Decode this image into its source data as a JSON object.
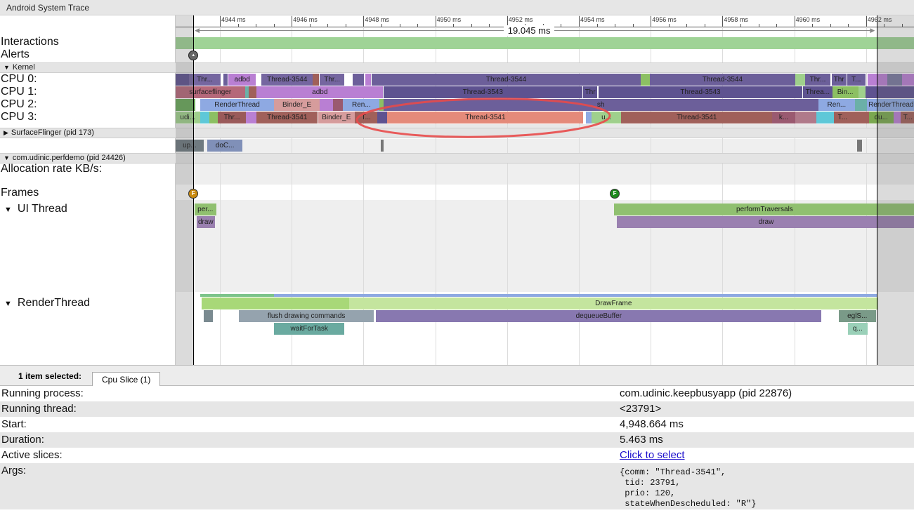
{
  "window": {
    "title": "Android System Trace"
  },
  "colors": {
    "accent_annotation": "#e84a4a",
    "interactions": "#9fd396",
    "selected_slice": "#e48a7a"
  },
  "ruler": {
    "ticks_ms": [
      4944,
      4946,
      4948,
      4950,
      4952,
      4954,
      4956,
      4958,
      4960,
      4962
    ],
    "labels": [
      "4944 ms",
      "4946 ms",
      "4948 ms",
      "4950 ms",
      "4952 ms",
      "4954 ms",
      "4956 ms",
      "4958 ms",
      "4960 ms",
      "4962 ms"
    ],
    "selection_start_ms": 4943.26,
    "selection_end_ms": 4962.305,
    "selection_duration": "19.045 ms"
  },
  "labels": {
    "interactions": "Interactions",
    "alerts": "Alerts",
    "kernel": "Kernel",
    "cpu0": "CPU 0:",
    "cpu1": "CPU 1:",
    "cpu2": "CPU 2:",
    "cpu3": "CPU 3:",
    "surfaceflinger": "SurfaceFlinger (pid 173)",
    "process": "com.udinic.perfdemo (pid 24426)",
    "allocation": "Allocation rate KB/s:",
    "frames": "Frames",
    "ui_thread": "UI Thread",
    "render_thread": "RenderThread"
  },
  "markers": {
    "alert_ms": 4943.26,
    "frames": [
      {
        "ms": 4943.26,
        "glyph": "F",
        "color": "#c98a10"
      },
      {
        "ms": 4955.0,
        "glyph": "F",
        "color": "#1e8a1e"
      }
    ]
  },
  "tracks": {
    "cpu0": [
      {
        "s": 4942.76,
        "e": 4943.14,
        "t": "",
        "c": "#5e5290"
      },
      {
        "s": 4943.14,
        "e": 4944.02,
        "t": "Thr...",
        "c": "#7566a0"
      },
      {
        "s": 4944.1,
        "e": 4944.22,
        "t": "",
        "c": "#6c5f9a"
      },
      {
        "s": 4944.24,
        "e": 4945.0,
        "t": "adbd",
        "c": "#b97fd3"
      },
      {
        "s": 4945.16,
        "e": 4946.59,
        "t": "Thread-3544",
        "c": "#7566a0"
      },
      {
        "s": 4946.59,
        "e": 4946.76,
        "t": "",
        "c": "#a0605a"
      },
      {
        "s": 4946.78,
        "e": 4947.47,
        "t": "Thr...",
        "c": "#7566a0"
      },
      {
        "s": 4947.69,
        "e": 4948.02,
        "t": "",
        "c": "#6c5f9a"
      },
      {
        "s": 4948.05,
        "e": 4948.2,
        "t": "",
        "c": "#b97fd3"
      },
      {
        "s": 4948.22,
        "e": 4955.73,
        "t": "Thread-3544",
        "c": "#6c5f9a"
      },
      {
        "s": 4955.73,
        "e": 4955.98,
        "t": "",
        "c": "#8cc063"
      },
      {
        "s": 4955.98,
        "e": 4960.02,
        "t": "Thread-3544",
        "c": "#6c5f9a"
      },
      {
        "s": 4960.02,
        "e": 4960.31,
        "t": "",
        "c": "#9fd08c"
      },
      {
        "s": 4960.31,
        "e": 4961.0,
        "t": "Thr...",
        "c": "#6c5f9a"
      },
      {
        "s": 4961.04,
        "e": 4961.45,
        "t": "Thr",
        "c": "#6c5f9a"
      },
      {
        "s": 4961.47,
        "e": 4961.98,
        "t": "T...",
        "c": "#6c5f9a"
      },
      {
        "s": 4962.05,
        "e": 4962.6,
        "t": "",
        "c": "#b97fd3"
      },
      {
        "s": 4962.6,
        "e": 4963.0,
        "t": "",
        "c": "#7a7aa0"
      },
      {
        "s": 4963.0,
        "e": 4963.37,
        "t": "",
        "c": "#b97fd3"
      }
    ],
    "cpu1": [
      {
        "s": 4942.76,
        "e": 4944.7,
        "t": "surfaceflinger",
        "c": "#b5687a"
      },
      {
        "s": 4944.7,
        "e": 4944.8,
        "t": "",
        "c": "#6bb0a8"
      },
      {
        "s": 4944.8,
        "e": 4945.02,
        "t": "",
        "c": "#a0605a"
      },
      {
        "s": 4945.02,
        "e": 4948.55,
        "t": "adbd",
        "c": "#b97fd3"
      },
      {
        "s": 4948.55,
        "e": 4954.1,
        "t": "Thread-3543",
        "c": "#5e5290"
      },
      {
        "s": 4954.12,
        "e": 4954.51,
        "t": "Thr",
        "c": "#5e5290"
      },
      {
        "s": 4954.55,
        "e": 4960.22,
        "t": "Thread-3543",
        "c": "#5e5290"
      },
      {
        "s": 4960.24,
        "e": 4961.06,
        "t": "Threa...",
        "c": "#5e5290"
      },
      {
        "s": 4961.06,
        "e": 4961.78,
        "t": "Bin...",
        "c": "#8cc063"
      },
      {
        "s": 4961.78,
        "e": 4961.98,
        "t": "",
        "c": "#9fd08c"
      },
      {
        "s": 4961.98,
        "e": 4963.37,
        "t": "",
        "c": "#5e5290"
      }
    ],
    "cpu2": [
      {
        "s": 4942.76,
        "e": 4943.31,
        "t": "",
        "c": "#6aa85a"
      },
      {
        "s": 4943.45,
        "e": 4945.51,
        "t": "RenderThread",
        "c": "#8ea9e2"
      },
      {
        "s": 4945.51,
        "e": 4946.78,
        "t": "Binder_E",
        "c": "#d69c9c"
      },
      {
        "s": 4946.78,
        "e": 4947.16,
        "t": "",
        "c": "#b97fd3"
      },
      {
        "s": 4947.16,
        "e": 4947.43,
        "t": "",
        "c": "#9a5a70"
      },
      {
        "s": 4947.43,
        "e": 4948.45,
        "t": "Ren...",
        "c": "#8ea9e2"
      },
      {
        "s": 4948.45,
        "e": 4948.55,
        "t": "",
        "c": "#8cc063"
      },
      {
        "s": 4948.55,
        "e": 4960.67,
        "t": "sh",
        "c": "#6c5f9a"
      },
      {
        "s": 4960.67,
        "e": 4961.69,
        "t": "Ren...",
        "c": "#8ea9e2"
      },
      {
        "s": 4961.69,
        "e": 4962.02,
        "t": "",
        "c": "#6bb0a8"
      },
      {
        "s": 4962.02,
        "e": 4963.37,
        "t": "RenderThread",
        "c": "#8ea9e2"
      }
    ],
    "cpu3": [
      {
        "s": 4942.76,
        "e": 4943.45,
        "t": "udi...",
        "c": "#9fd08c"
      },
      {
        "s": 4943.45,
        "e": 4943.7,
        "t": "",
        "c": "#5ec8d8"
      },
      {
        "s": 4943.7,
        "e": 4943.94,
        "t": "",
        "c": "#8cc063"
      },
      {
        "s": 4943.94,
        "e": 4944.73,
        "t": "Thr...",
        "c": "#9a5a5a"
      },
      {
        "s": 4944.73,
        "e": 4945.02,
        "t": "",
        "c": "#b97fd3"
      },
      {
        "s": 4945.02,
        "e": 4946.73,
        "t": "Thread-3541",
        "c": "#a0605a"
      },
      {
        "s": 4946.73,
        "e": 4947.76,
        "t": "Binder_E",
        "c": "#d69c9c"
      },
      {
        "s": 4947.76,
        "e": 4948.39,
        "t": "T...",
        "c": "#a0605a"
      },
      {
        "s": 4948.39,
        "e": 4948.65,
        "t": "",
        "c": "#5e5290"
      },
      {
        "s": 4948.664,
        "e": 4954.127,
        "t": "Thread-3541",
        "c": "#e48a7a"
      },
      {
        "s": 4954.2,
        "e": 4954.35,
        "t": "",
        "c": "#8ea9e2"
      },
      {
        "s": 4954.35,
        "e": 4955.18,
        "t": "u...",
        "c": "#9fd08c"
      },
      {
        "s": 4955.18,
        "e": 4959.39,
        "t": "Thread-3541",
        "c": "#a0605a"
      },
      {
        "s": 4959.39,
        "e": 4960.02,
        "t": "k...",
        "c": "#9a5a70"
      },
      {
        "s": 4960.02,
        "e": 4960.61,
        "t": "",
        "c": "#b07a8a"
      },
      {
        "s": 4960.61,
        "e": 4961.1,
        "t": "",
        "c": "#5ec8d8"
      },
      {
        "s": 4961.1,
        "e": 4961.59,
        "t": "T...",
        "c": "#a0605a"
      },
      {
        "s": 4961.59,
        "e": 4962.08,
        "t": "",
        "c": "#a0605a"
      },
      {
        "s": 4962.08,
        "e": 4962.76,
        "t": "du...",
        "c": "#7aa850"
      },
      {
        "s": 4962.76,
        "e": 4962.96,
        "t": "",
        "c": "#b97fd3"
      },
      {
        "s": 4962.96,
        "e": 4963.37,
        "t": "T...",
        "c": "#a0605a"
      }
    ],
    "surfaceflinger": [
      {
        "s": 4942.76,
        "e": 4943.55,
        "t": "up...",
        "c": "#6f7a80"
      },
      {
        "s": 4943.65,
        "e": 4944.63,
        "t": "doC...",
        "c": "#8090b8"
      },
      {
        "s": 4948.49,
        "e": 4948.55,
        "t": "",
        "c": "#777777"
      },
      {
        "s": 4961.74,
        "e": 4961.88,
        "t": "",
        "c": "#777777"
      }
    ],
    "ui_depth0": [
      {
        "s": 4943.29,
        "e": 4943.9,
        "t": "per...",
        "c": "#90c070"
      },
      {
        "s": 4954.98,
        "e": 4963.37,
        "t": "performTraversals",
        "c": "#90c070"
      }
    ],
    "ui_depth1": [
      {
        "s": 4943.35,
        "e": 4943.86,
        "t": "draw",
        "c": "#9a80b0"
      },
      {
        "s": 4955.06,
        "e": 4963.37,
        "t": "draw",
        "c": "#9a80b0"
      }
    ],
    "rt_depth0": [
      {
        "s": 4943.49,
        "e": 4947.6,
        "t": "",
        "c": "#a8d878"
      },
      {
        "s": 4947.6,
        "e": 4962.33,
        "t": "DrawFrame",
        "c": "#c4e59e"
      }
    ],
    "rt_depth1": [
      {
        "s": 4943.55,
        "e": 4943.8,
        "t": "",
        "c": "#7a8a90"
      },
      {
        "s": 4944.53,
        "e": 4948.29,
        "t": "flush drawing commands",
        "c": "#95a3ae"
      },
      {
        "s": 4948.35,
        "e": 4960.76,
        "t": "dequeueBuffer",
        "c": "#8878b0"
      },
      {
        "s": 4961.24,
        "e": 4962.27,
        "t": "eglS...",
        "c": "#7a9a88"
      }
    ],
    "rt_depth2": [
      {
        "s": 4945.51,
        "e": 4947.47,
        "t": "waitForTask",
        "c": "#6aaaa0"
      },
      {
        "s": 4961.49,
        "e": 4962.04,
        "t": "q...",
        "c": "#9ad0b8"
      }
    ]
  },
  "panel": {
    "selection_summary": "1 item selected:",
    "tab": "Cpu Slice (1)",
    "rows": [
      {
        "key": "Running process:",
        "value": "com.udinic.keepbusyapp (pid 22876)"
      },
      {
        "key": "Running thread:",
        "value": "<23791>"
      },
      {
        "key": "Start:",
        "value": "4,948.664 ms"
      },
      {
        "key": "Duration:",
        "value": "5.463 ms"
      },
      {
        "key": "Active slices:",
        "value": "Click to select"
      }
    ],
    "args_key": "Args:",
    "args_lines": [
      "{comm: \"Thread-3541\",",
      " tid: 23791,",
      " prio: 120,",
      " stateWhenDescheduled: \"R\"}"
    ]
  }
}
